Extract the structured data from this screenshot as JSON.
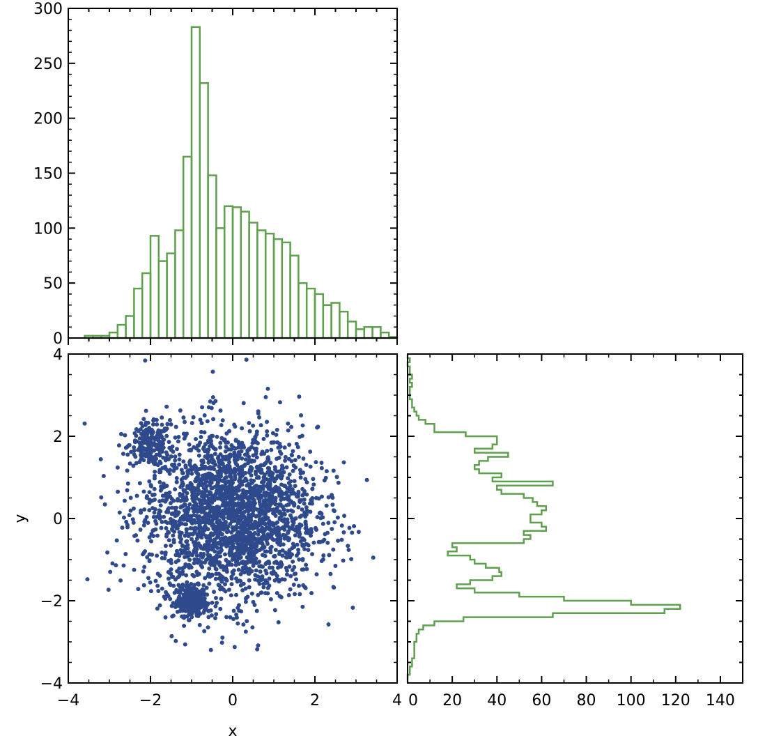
{
  "colors": {
    "bar": "#5fa04f",
    "scatter": "#2e4a8c",
    "axis": "#000000"
  },
  "chart_data": [
    {
      "id": "top-histogram",
      "type": "bar",
      "title": "",
      "xlabel": "",
      "ylabel": "",
      "xlim": [
        -4,
        4
      ],
      "ylim": [
        0,
        300
      ],
      "grid": false,
      "bin_width": 0.2,
      "bin_start": -3.6,
      "values": [
        2,
        2,
        2,
        5,
        12,
        20,
        45,
        59,
        93,
        70,
        77,
        98,
        165,
        283,
        232,
        148,
        100,
        120,
        119,
        115,
        105,
        98,
        95,
        90,
        87,
        75,
        50,
        45,
        40,
        30,
        32,
        24,
        15,
        8,
        10,
        10,
        5,
        1
      ],
      "yticks": [
        "0",
        "50",
        "100",
        "150",
        "200",
        "250",
        "300"
      ],
      "xtick_values": [
        -4,
        -2,
        0,
        2,
        4
      ]
    },
    {
      "id": "scatter",
      "type": "scatter",
      "title": "",
      "xlabel": "x",
      "ylabel": "y",
      "xlim": [
        -4,
        4
      ],
      "ylim": [
        -4,
        4
      ],
      "grid": false,
      "marker_size": 3,
      "n_points": 3000,
      "clusters_shown": [
        {
          "center": [
            -1.0,
            -2.0
          ],
          "spread": 0.18,
          "count": 300
        },
        {
          "center": [
            -2.0,
            1.8
          ],
          "spread": 0.25,
          "count": 200
        }
      ],
      "xticks": [
        "−4",
        "−2",
        "0",
        "2",
        "4"
      ],
      "yticks": [
        "−4",
        "−2",
        "0",
        "2",
        "4"
      ],
      "xtick_values": [
        -4,
        -2,
        0,
        2,
        4
      ],
      "ytick_values": [
        -4,
        -2,
        0,
        2,
        4
      ]
    },
    {
      "id": "right-histogram",
      "type": "bar",
      "orientation": "horizontal",
      "title": "",
      "xlabel": "",
      "ylabel": "",
      "xlim": [
        0,
        150
      ],
      "ylim": [
        -4,
        4
      ],
      "grid": false,
      "bin_width": 0.1,
      "bin_start": -4.0,
      "values": [
        0,
        0,
        1,
        1,
        2,
        2,
        3,
        3,
        3,
        3,
        4,
        4,
        5,
        7,
        12,
        25,
        65,
        115,
        122,
        100,
        70,
        50,
        30,
        22,
        28,
        38,
        42,
        41,
        35,
        30,
        28,
        18,
        22,
        20,
        52,
        55,
        52,
        62,
        60,
        55,
        55,
        60,
        62,
        58,
        56,
        52,
        42,
        40,
        65,
        38,
        42,
        32,
        30,
        32,
        36,
        45,
        30,
        38,
        40,
        40,
        26,
        12,
        12,
        8,
        5,
        4,
        3,
        2,
        2,
        1,
        1,
        1,
        2,
        1,
        2,
        1,
        1,
        0,
        1,
        0
      ],
      "xticks": [
        "0",
        "20",
        "40",
        "60",
        "80",
        "100",
        "120",
        "140"
      ],
      "xtick_values": [
        0,
        20,
        40,
        60,
        80,
        100,
        120,
        140
      ]
    }
  ]
}
